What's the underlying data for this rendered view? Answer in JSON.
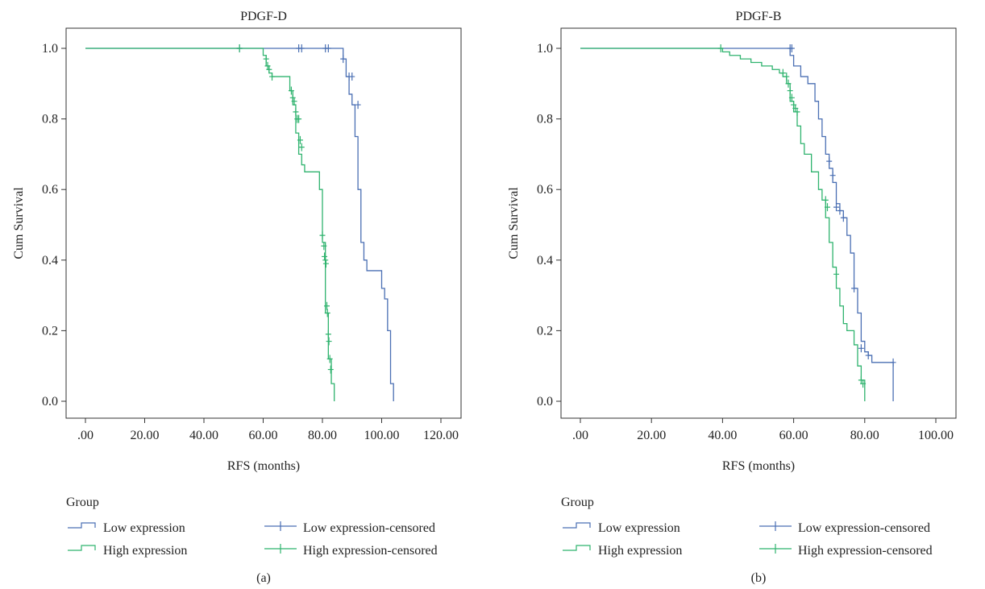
{
  "legend_title": "Group",
  "legend_items": {
    "low": "Low expression",
    "high": "High expression",
    "low_censored": "Low expression-censored",
    "high_censored": "High expression-censored"
  },
  "colors": {
    "low": "#4a6fb3",
    "high": "#2fb36e",
    "axis": "#333333"
  },
  "chart_data": [
    {
      "type": "line",
      "subtype": "kaplan-meier",
      "panel_label": "(a)",
      "title": "PDGF-D",
      "xlabel": "RFS (months)",
      "ylabel": "Cum Survival",
      "xlim": [
        0,
        120
      ],
      "ylim": [
        0,
        1
      ],
      "xticks": [
        0,
        20,
        40,
        60,
        80,
        100,
        120
      ],
      "xtick_labels": [
        ".00",
        "20.00",
        "40.00",
        "60.00",
        "80.00",
        "100.00",
        "120.00"
      ],
      "yticks": [
        0,
        0.2,
        0.4,
        0.6,
        0.8,
        1.0
      ],
      "ytick_labels": [
        "0.0",
        "0.2",
        "0.4",
        "0.6",
        "0.8",
        "1.0"
      ],
      "grid": false,
      "legend": "bottom",
      "series": [
        {
          "name": "Low expression",
          "key": "low",
          "x": [
            0,
            87,
            88,
            89,
            90,
            91,
            92,
            93,
            94,
            95,
            97,
            100,
            101,
            102,
            103,
            104
          ],
          "y": [
            1.0,
            0.97,
            0.92,
            0.87,
            0.84,
            0.75,
            0.6,
            0.45,
            0.4,
            0.37,
            0.37,
            0.32,
            0.29,
            0.2,
            0.05,
            0.0
          ],
          "censored": [
            [
              52,
              1.0
            ],
            [
              72,
              1.0
            ],
            [
              73,
              1.0
            ],
            [
              81,
              1.0
            ],
            [
              82,
              1.0
            ],
            [
              87,
              0.97
            ],
            [
              89,
              0.92
            ],
            [
              90,
              0.92
            ],
            [
              92,
              0.84
            ]
          ]
        },
        {
          "name": "High expression",
          "key": "high",
          "x": [
            0,
            60,
            61,
            62,
            63,
            65,
            69,
            70,
            71,
            72,
            73,
            74,
            76,
            79,
            80,
            81,
            82,
            83,
            84
          ],
          "y": [
            1.0,
            0.98,
            0.95,
            0.93,
            0.92,
            0.92,
            0.88,
            0.84,
            0.76,
            0.7,
            0.67,
            0.65,
            0.65,
            0.6,
            0.45,
            0.25,
            0.12,
            0.05,
            0.0
          ],
          "censored": [
            [
              52,
              1.0
            ],
            [
              61,
              0.97
            ],
            [
              61.5,
              0.95
            ],
            [
              62,
              0.94
            ],
            [
              63,
              0.92
            ],
            [
              69.5,
              0.88
            ],
            [
              70,
              0.86
            ],
            [
              70.5,
              0.85
            ],
            [
              71,
              0.82
            ],
            [
              71.5,
              0.8
            ],
            [
              72,
              0.8
            ],
            [
              72.5,
              0.74
            ],
            [
              73,
              0.72
            ],
            [
              80,
              0.47
            ],
            [
              80.5,
              0.44
            ],
            [
              80.7,
              0.41
            ],
            [
              81,
              0.4
            ],
            [
              81.2,
              0.39
            ],
            [
              81.5,
              0.27
            ],
            [
              81.7,
              0.25
            ],
            [
              82,
              0.19
            ],
            [
              82.2,
              0.17
            ],
            [
              82.5,
              0.12
            ],
            [
              82.8,
              0.09
            ]
          ]
        }
      ]
    },
    {
      "type": "line",
      "subtype": "kaplan-meier",
      "panel_label": "(b)",
      "title": "PDGF-B",
      "xlabel": "RFS (months)",
      "ylabel": "Cum Survival",
      "xlim": [
        0,
        100
      ],
      "ylim": [
        0,
        1
      ],
      "xticks": [
        0,
        20,
        40,
        60,
        80,
        100
      ],
      "xtick_labels": [
        ".00",
        "20.00",
        "40.00",
        "60.00",
        "80.00",
        "100.00"
      ],
      "yticks": [
        0,
        0.2,
        0.4,
        0.6,
        0.8,
        1.0
      ],
      "ytick_labels": [
        "0.0",
        "0.2",
        "0.4",
        "0.6",
        "0.8",
        "1.0"
      ],
      "grid": false,
      "legend": "bottom",
      "series": [
        {
          "name": "Low expression",
          "key": "low",
          "x": [
            0,
            59,
            60,
            62,
            64,
            66,
            67,
            68,
            69,
            70,
            71,
            72,
            73,
            74,
            75,
            76,
            77,
            78,
            79,
            80,
            81,
            82,
            88
          ],
          "y": [
            1.0,
            0.98,
            0.95,
            0.92,
            0.9,
            0.85,
            0.8,
            0.75,
            0.7,
            0.66,
            0.62,
            0.56,
            0.54,
            0.52,
            0.47,
            0.42,
            0.32,
            0.25,
            0.17,
            0.14,
            0.13,
            0.11,
            0.0
          ],
          "censored": [
            [
              59,
              1.0
            ],
            [
              59.5,
              1.0
            ],
            [
              70,
              0.68
            ],
            [
              71,
              0.64
            ],
            [
              72,
              0.55
            ],
            [
              73,
              0.54
            ],
            [
              74,
              0.52
            ],
            [
              77,
              0.32
            ],
            [
              79,
              0.15
            ],
            [
              81,
              0.13
            ],
            [
              88,
              0.11
            ]
          ]
        },
        {
          "name": "High expression",
          "key": "high",
          "x": [
            0,
            40,
            42,
            45,
            48,
            51,
            54,
            56,
            57,
            58,
            59,
            60,
            61,
            62,
            63,
            65,
            67,
            68,
            69,
            70,
            71,
            72,
            73,
            74,
            75,
            77,
            78,
            79,
            80
          ],
          "y": [
            1.0,
            0.99,
            0.98,
            0.97,
            0.96,
            0.95,
            0.94,
            0.93,
            0.92,
            0.9,
            0.85,
            0.82,
            0.78,
            0.73,
            0.7,
            0.65,
            0.6,
            0.57,
            0.52,
            0.45,
            0.38,
            0.32,
            0.27,
            0.22,
            0.2,
            0.16,
            0.1,
            0.06,
            0.0
          ],
          "censored": [
            [
              39.5,
              1.0
            ],
            [
              57,
              0.93
            ],
            [
              58,
              0.92
            ],
            [
              58.5,
              0.9
            ],
            [
              59,
              0.88
            ],
            [
              59.5,
              0.86
            ],
            [
              60,
              0.84
            ],
            [
              60.5,
              0.83
            ],
            [
              61,
              0.82
            ],
            [
              69,
              0.57
            ],
            [
              69.5,
              0.55
            ],
            [
              72,
              0.36
            ],
            [
              79,
              0.06
            ],
            [
              79.5,
              0.05
            ]
          ]
        }
      ]
    }
  ]
}
